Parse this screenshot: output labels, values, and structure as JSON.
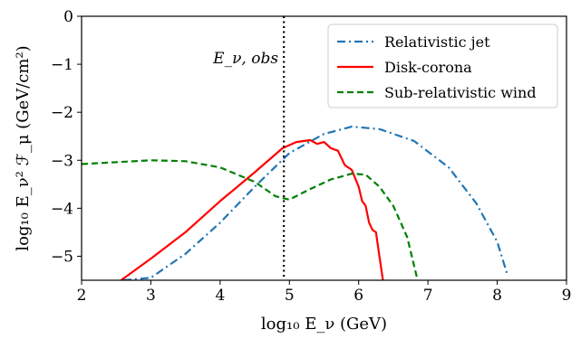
{
  "chart_data": {
    "type": "line",
    "xlabel": "log₁₀ E_ν (GeV)",
    "ylabel": "log₁₀ E_ν² ℱ_μ (GeV/cm²)",
    "xlim": [
      2,
      9
    ],
    "ylim": [
      -5.5,
      0
    ],
    "xticks": [
      2,
      3,
      4,
      5,
      6,
      7,
      8,
      9
    ],
    "yticks": [
      0,
      -1,
      -2,
      -3,
      -4,
      -5
    ],
    "xtick_labels": [
      "2",
      "3",
      "4",
      "5",
      "6",
      "7",
      "8",
      "9"
    ],
    "ytick_labels": [
      "0",
      "−1",
      "−2",
      "−3",
      "−4",
      "−5"
    ],
    "grid": false,
    "legend_position": "top-right",
    "vline": {
      "x": 4.92,
      "label": "E_ν, obs"
    },
    "series": [
      {
        "name": "Relativistic jet",
        "color": "#1f77b4",
        "dash": "dashdot",
        "x": [
          2.6,
          3.0,
          3.5,
          4.0,
          4.5,
          5.0,
          5.5,
          5.9,
          6.3,
          6.8,
          7.3,
          7.7,
          8.0,
          8.15
        ],
        "y": [
          -5.5,
          -5.45,
          -4.95,
          -4.3,
          -3.55,
          -2.85,
          -2.45,
          -2.3,
          -2.35,
          -2.6,
          -3.15,
          -3.9,
          -4.7,
          -5.4
        ]
      },
      {
        "name": "Disk-corona",
        "color": "#ff0000",
        "dash": "solid",
        "x": [
          2.57,
          3.0,
          3.5,
          4.0,
          4.5,
          4.9,
          5.1,
          5.3,
          5.4,
          5.5,
          5.6,
          5.7,
          5.8,
          5.9,
          6.0,
          6.05,
          6.1,
          6.15,
          6.2,
          6.25,
          6.3,
          6.35
        ],
        "y": [
          -5.5,
          -5.05,
          -4.5,
          -3.85,
          -3.25,
          -2.75,
          -2.62,
          -2.58,
          -2.66,
          -2.62,
          -2.75,
          -2.8,
          -3.1,
          -3.2,
          -3.55,
          -3.85,
          -3.95,
          -4.3,
          -4.45,
          -4.5,
          -5.0,
          -5.5
        ]
      },
      {
        "name": "Sub-relativistic wind",
        "color": "#008000",
        "dash": "dashed",
        "x": [
          2.0,
          2.5,
          3.0,
          3.5,
          4.0,
          4.5,
          4.8,
          5.0,
          5.3,
          5.6,
          5.9,
          6.1,
          6.3,
          6.5,
          6.7,
          6.8,
          6.85
        ],
        "y": [
          -3.08,
          -3.04,
          -3.0,
          -3.02,
          -3.15,
          -3.45,
          -3.75,
          -3.82,
          -3.6,
          -3.4,
          -3.28,
          -3.3,
          -3.55,
          -3.95,
          -4.6,
          -5.2,
          -5.5
        ]
      }
    ]
  }
}
